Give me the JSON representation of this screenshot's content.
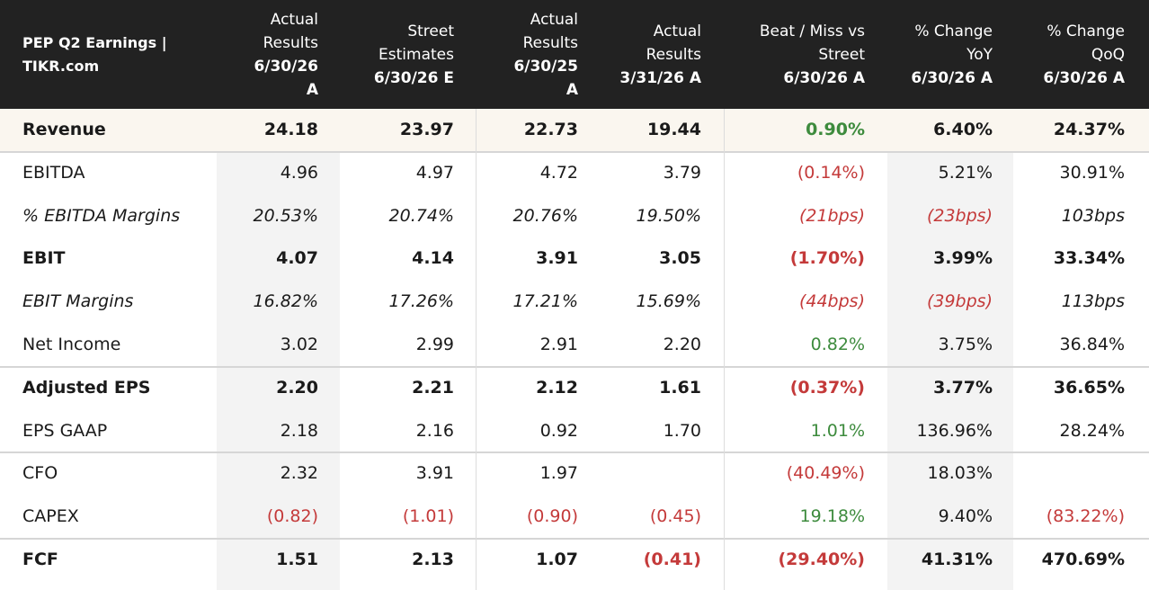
{
  "table": {
    "title_lines": [
      "PEP Q2 Earnings |",
      "TIKR.com"
    ],
    "columns": [
      {
        "lines": [
          "Actual",
          "Results",
          "6/30/26",
          "A"
        ],
        "bold_from": 2
      },
      {
        "lines": [
          "Street",
          "Estimates",
          "6/30/26 E"
        ],
        "bold_from": 2
      },
      {
        "lines": [
          "Actual",
          "Results",
          "6/30/25",
          "A"
        ],
        "bold_from": 2
      },
      {
        "lines": [
          "Actual",
          "Results",
          "3/31/26 A"
        ],
        "bold_from": 2
      },
      {
        "lines": [
          "Beat / Miss vs",
          "Street",
          "6/30/26 A"
        ],
        "bold_from": 2
      },
      {
        "lines": [
          "% Change",
          "YoY",
          "6/30/26 A"
        ],
        "bold_from": 2
      },
      {
        "lines": [
          "% Change",
          "QoQ",
          "6/30/26 A"
        ],
        "bold_from": 2
      }
    ],
    "rows": [
      {
        "label": "Revenue",
        "style": "bold",
        "highlight": true,
        "values": [
          "24.18",
          "23.97",
          "22.73",
          "19.44",
          "0.90%",
          "6.40%",
          "24.37%"
        ],
        "colors": [
          "",
          "",
          "",
          "",
          "pos",
          "",
          ""
        ]
      },
      {
        "label": "EBITDA",
        "style": "normal",
        "values": [
          "4.96",
          "4.97",
          "4.72",
          "3.79",
          "(0.14%)",
          "5.21%",
          "30.91%"
        ],
        "colors": [
          "",
          "",
          "",
          "",
          "neg",
          "",
          ""
        ]
      },
      {
        "label": "% EBITDA Margins",
        "style": "italic",
        "values": [
          "20.53%",
          "20.74%",
          "20.76%",
          "19.50%",
          "(21bps)",
          "(23bps)",
          "103bps"
        ],
        "colors": [
          "",
          "",
          "",
          "",
          "neg",
          "neg",
          ""
        ]
      },
      {
        "label": "EBIT",
        "style": "bold",
        "values": [
          "4.07",
          "4.14",
          "3.91",
          "3.05",
          "(1.70%)",
          "3.99%",
          "33.34%"
        ],
        "colors": [
          "",
          "",
          "",
          "",
          "neg",
          "",
          ""
        ]
      },
      {
        "label": "EBIT Margins",
        "style": "italic",
        "values": [
          "16.82%",
          "17.26%",
          "17.21%",
          "15.69%",
          "(44bps)",
          "(39bps)",
          "113bps"
        ],
        "colors": [
          "",
          "",
          "",
          "",
          "neg",
          "neg",
          ""
        ]
      },
      {
        "label": "Net Income",
        "style": "normal",
        "values": [
          "3.02",
          "2.99",
          "2.91",
          "2.20",
          "0.82%",
          "3.75%",
          "36.84%"
        ],
        "colors": [
          "",
          "",
          "",
          "",
          "pos",
          "",
          ""
        ]
      },
      {
        "label": "Adjusted EPS",
        "style": "bold",
        "values": [
          "2.20",
          "2.21",
          "2.12",
          "1.61",
          "(0.37%)",
          "3.77%",
          "36.65%"
        ],
        "colors": [
          "",
          "",
          "",
          "",
          "neg",
          "",
          ""
        ]
      },
      {
        "label": "EPS GAAP",
        "style": "normal",
        "values": [
          "2.18",
          "2.16",
          "0.92",
          "1.70",
          "1.01%",
          "136.96%",
          "28.24%"
        ],
        "colors": [
          "",
          "",
          "",
          "",
          "pos",
          "",
          ""
        ]
      },
      {
        "label": "CFO",
        "style": "normal",
        "values": [
          "2.32",
          "3.91",
          "1.97",
          "",
          "(40.49%)",
          "18.03%",
          ""
        ],
        "colors": [
          "",
          "",
          "",
          "",
          "neg",
          "",
          ""
        ]
      },
      {
        "label": "CAPEX",
        "style": "normal",
        "values": [
          "(0.82)",
          "(1.01)",
          "(0.90)",
          "(0.45)",
          "19.18%",
          "9.40%",
          "(83.22%)"
        ],
        "colors": [
          "neg",
          "neg",
          "neg",
          "neg",
          "pos",
          "",
          "neg"
        ]
      },
      {
        "label": "FCF",
        "style": "bold",
        "values": [
          "1.51",
          "2.13",
          "1.07",
          "(0.41)",
          "(29.40%)",
          "41.31%",
          "470.69%"
        ],
        "colors": [
          "",
          "",
          "",
          "neg",
          "neg",
          "",
          ""
        ]
      }
    ],
    "colors": {
      "header_bg": "#222222",
      "negative": "#c43a3a",
      "positive": "#3d8b3d",
      "highlight_row": "#faf6ef",
      "shaded_column": "#f3f3f3"
    }
  },
  "chart_data": {
    "type": "table",
    "title": "PEP Q2 Earnings | TIKR.com",
    "columns": [
      "Actual Results 6/30/26 A",
      "Street Estimates 6/30/26 E",
      "Actual Results 6/30/25 A",
      "Actual Results 3/31/26 A",
      "Beat / Miss vs Street 6/30/26 A",
      "% Change YoY 6/30/26 A",
      "% Change QoQ 6/30/26 A"
    ],
    "rows": [
      {
        "label": "Revenue",
        "values": [
          "24.18",
          "23.97",
          "22.73",
          "19.44",
          "0.90%",
          "6.40%",
          "24.37%"
        ]
      },
      {
        "label": "EBITDA",
        "values": [
          "4.96",
          "4.97",
          "4.72",
          "3.79",
          "(0.14%)",
          "5.21%",
          "30.91%"
        ]
      },
      {
        "label": "% EBITDA Margins",
        "values": [
          "20.53%",
          "20.74%",
          "20.76%",
          "19.50%",
          "(21bps)",
          "(23bps)",
          "103bps"
        ]
      },
      {
        "label": "EBIT",
        "values": [
          "4.07",
          "4.14",
          "3.91",
          "3.05",
          "(1.70%)",
          "3.99%",
          "33.34%"
        ]
      },
      {
        "label": "EBIT Margins",
        "values": [
          "16.82%",
          "17.26%",
          "17.21%",
          "15.69%",
          "(44bps)",
          "(39bps)",
          "113bps"
        ]
      },
      {
        "label": "Net Income",
        "values": [
          "3.02",
          "2.99",
          "2.91",
          "2.20",
          "0.82%",
          "3.75%",
          "36.84%"
        ]
      },
      {
        "label": "Adjusted EPS",
        "values": [
          "2.20",
          "2.21",
          "2.12",
          "1.61",
          "(0.37%)",
          "3.77%",
          "36.65%"
        ]
      },
      {
        "label": "EPS GAAP",
        "values": [
          "2.18",
          "2.16",
          "0.92",
          "1.70",
          "1.01%",
          "136.96%",
          "28.24%"
        ]
      },
      {
        "label": "CFO",
        "values": [
          "2.32",
          "3.91",
          "1.97",
          "",
          "(40.49%)",
          "18.03%",
          ""
        ]
      },
      {
        "label": "CAPEX",
        "values": [
          "(0.82)",
          "(1.01)",
          "(0.90)",
          "(0.45)",
          "19.18%",
          "9.40%",
          "(83.22%)"
        ]
      },
      {
        "label": "FCF",
        "values": [
          "1.51",
          "2.13",
          "1.07",
          "(0.41)",
          "(29.40%)",
          "41.31%",
          "470.69%"
        ]
      }
    ]
  }
}
